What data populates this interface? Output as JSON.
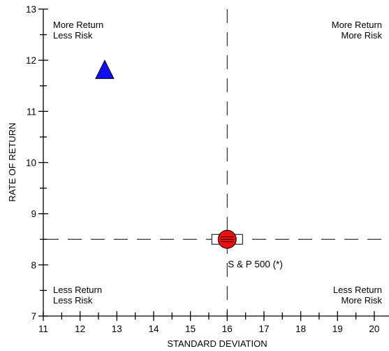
{
  "chart_data": {
    "type": "scatter",
    "title": "",
    "xlabel": "STANDARD DEVIATION",
    "ylabel": "RATE OF RETURN",
    "xlim": [
      11,
      20.4
    ],
    "ylim": [
      7,
      13
    ],
    "x_ticks": [
      11,
      12,
      13,
      14,
      15,
      16,
      17,
      18,
      19,
      20
    ],
    "y_ticks": [
      7,
      8,
      9,
      10,
      11,
      12,
      13
    ],
    "grid": false,
    "reference_lines": {
      "x": 16.0,
      "y": 8.5,
      "style": "dashed"
    },
    "quadrant_labels": {
      "top_left": [
        "More Return",
        "Less Risk"
      ],
      "top_right": [
        "More Return",
        "More Risk"
      ],
      "bottom_left": [
        "Less Return",
        "Less Risk"
      ],
      "bottom_right": [
        "Less Return",
        "More Risk"
      ]
    },
    "series": [
      {
        "marker": "triangle",
        "color": "#1010ee",
        "x": 12.67,
        "y": 11.82
      },
      {
        "name": "S & P 500 (*)",
        "marker": "circle-with-box",
        "color": "#e81010",
        "x": 16.0,
        "y": 8.5
      }
    ]
  }
}
